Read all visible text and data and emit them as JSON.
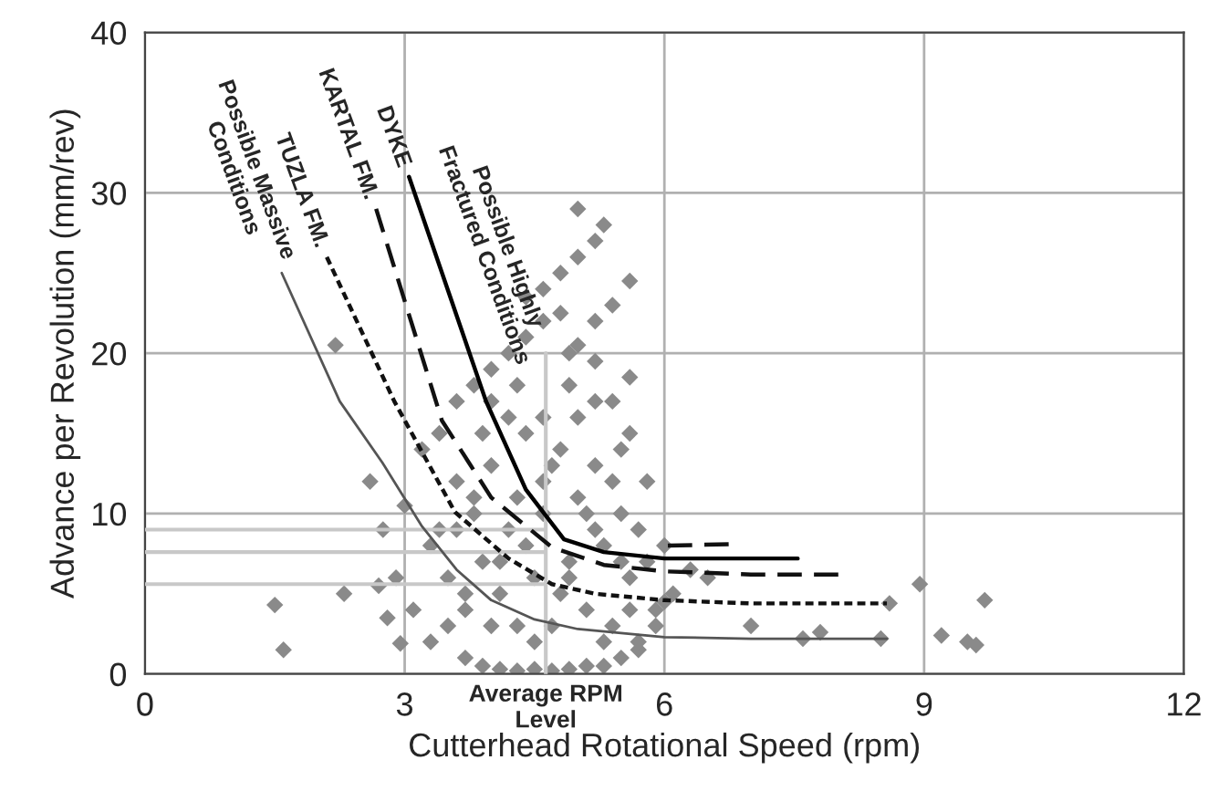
{
  "chart_data": {
    "type": "scatter",
    "xlabel": "Cutterhead Rotational Speed (rpm)",
    "ylabel": "Advance per Revolution (mm/rev)",
    "xlim": [
      0,
      12
    ],
    "ylim": [
      0,
      40
    ],
    "xticks": [
      0,
      3,
      6,
      9,
      12
    ],
    "yticks": [
      0,
      10,
      20,
      30,
      40
    ],
    "grid": true,
    "series": [
      {
        "marker": "diamond",
        "color": "#8a8a8a",
        "x": [
          1.5,
          1.6,
          2.2,
          2.3,
          2.7,
          2.8,
          2.95,
          2.6,
          2.75,
          2.9,
          3.0,
          3.1,
          3.2,
          3.3,
          3.4,
          3.5,
          3.6,
          3.7,
          3.8,
          3.9,
          4.0,
          4.1,
          4.2,
          4.3,
          4.4,
          4.5,
          4.6,
          4.7,
          4.8,
          4.9,
          5.0,
          5.1,
          5.2,
          5.3,
          5.4,
          5.5,
          5.6,
          5.7,
          5.8,
          5.9,
          6.0,
          6.1,
          3.3,
          3.4,
          3.5,
          3.6,
          3.7,
          3.8,
          3.9,
          4.0,
          4.1,
          4.2,
          4.3,
          4.4,
          4.5,
          4.6,
          4.7,
          4.8,
          4.9,
          5.0,
          5.1,
          5.2,
          5.3,
          5.4,
          5.5,
          5.6,
          5.7,
          5.8,
          3.6,
          3.8,
          4.0,
          4.2,
          4.4,
          4.6,
          4.8,
          5.0,
          5.2,
          5.4,
          5.6,
          3.7,
          3.9,
          4.1,
          4.3,
          4.5,
          4.7,
          4.9,
          5.1,
          5.3,
          5.5,
          5.7,
          5.9,
          4.0,
          4.3,
          4.6,
          4.9,
          5.2,
          5.5,
          4.6,
          4.8,
          5.0,
          5.2,
          5.4,
          5.0,
          5.3,
          5.6,
          4.4,
          4.9,
          5.2,
          5.6,
          6.0,
          6.3,
          6.5,
          7.0,
          7.6,
          7.8,
          8.5,
          8.6,
          8.95,
          9.2,
          9.5,
          9.6,
          9.7
        ],
        "values": [
          4.3,
          1.5,
          20.5,
          5.0,
          5.5,
          3.5,
          1.9,
          12.0,
          9.0,
          6.0,
          10.5,
          4.0,
          14.0,
          2.0,
          15.0,
          3.0,
          17.0,
          1.0,
          18.0,
          0.5,
          19.0,
          0.3,
          20.0,
          0.2,
          21.0,
          0.3,
          22.0,
          0.2,
          22.5,
          0.3,
          20.5,
          0.5,
          19.5,
          0.5,
          17.0,
          1.0,
          15.0,
          1.5,
          12.0,
          3.0,
          8.0,
          5.0,
          8.0,
          9.0,
          6.0,
          12.0,
          4.0,
          10.0,
          7.0,
          13.0,
          5.0,
          9.0,
          3.0,
          15.0,
          6.0,
          10.0,
          3.0,
          14.0,
          7.0,
          11.0,
          4.0,
          13.0,
          8.0,
          3.0,
          10.0,
          6.0,
          2.0,
          7.0,
          9.0,
          11.0,
          3.0,
          16.0,
          8.0,
          12.0,
          5.0,
          16.0,
          9.0,
          12.0,
          4.0,
          5.0,
          15.0,
          7.0,
          11.0,
          2.0,
          13.0,
          6.0,
          10.0,
          2.0,
          7.0,
          9.0,
          4.0,
          17.0,
          18.0,
          16.0,
          18.0,
          17.0,
          14.0,
          24.0,
          25.0,
          26.0,
          27.0,
          23.0,
          29.0,
          28.0,
          24.5,
          23.5,
          20.0,
          22.0,
          18.5,
          4.5,
          6.5,
          6.0,
          3.0,
          2.2,
          2.6,
          2.2,
          4.4,
          5.6,
          2.4,
          2.0,
          1.8,
          4.6
        ]
      },
      {
        "type": "line",
        "color": "#555555",
        "line_style": "solid",
        "x": [
          1.58,
          2.25,
          2.74,
          3.2,
          3.6,
          4.0,
          4.5,
          5.0,
          6.0,
          7.0,
          8.57
        ],
        "values": [
          25,
          17,
          13.2,
          9.2,
          6.5,
          4.6,
          3.4,
          2.8,
          2.3,
          2.2,
          2.2
        ]
      },
      {
        "type": "line",
        "color": "#111111",
        "line_style": "dotted",
        "x": [
          2.1,
          2.88,
          3.58,
          4.2,
          4.7,
          5.2,
          6.0,
          7.0,
          8.57
        ],
        "values": [
          26,
          17,
          10.1,
          7.2,
          5.6,
          5.0,
          4.6,
          4.4,
          4.4
        ]
      },
      {
        "type": "line",
        "color": "#111111",
        "line_style": "dashed",
        "x": [
          2.67,
          3.43,
          4.0,
          4.7,
          5.3,
          6.0,
          7.0,
          8.07
        ],
        "values": [
          29,
          15.8,
          11,
          7.9,
          6.8,
          6.4,
          6.2,
          6.2
        ]
      },
      {
        "type": "line",
        "color": "#111111",
        "line_style": "dashed",
        "x": [
          6.04,
          6.78
        ],
        "values": [
          8.0,
          8.1
        ]
      },
      {
        "type": "line",
        "color": "#000000",
        "line_style": "solid",
        "x": [
          3.05,
          3.94,
          4.4,
          4.84,
          5.3,
          6.0,
          7.0,
          7.54
        ],
        "values": [
          31,
          17,
          11.5,
          8.4,
          7.6,
          7.2,
          7.2,
          7.2
        ]
      }
    ],
    "ref_lines": [
      {
        "axis": "x",
        "value": 4.63,
        "color": "#c8c8c8"
      },
      {
        "axis": "y",
        "value": 9.0,
        "color": "#c8c8c8"
      },
      {
        "axis": "y",
        "value": 7.6,
        "color": "#c8c8c8"
      },
      {
        "axis": "y",
        "value": 5.6,
        "color": "#c8c8c8"
      }
    ],
    "annotations": [
      {
        "text": "Possible Massive\nConditions",
        "x": 1.58,
        "y": 25
      },
      {
        "text": "TUZLA FM.",
        "x": 2.1,
        "y": 26
      },
      {
        "text": "KARTAL FM.",
        "x": 2.67,
        "y": 29
      },
      {
        "text": "DYKE",
        "x": 3.05,
        "y": 31
      },
      "Possible Highly\nFractured Conditions",
      {
        "text": "Average RPM\nLevel",
        "x": 4.63,
        "y": 0
      }
    ]
  }
}
